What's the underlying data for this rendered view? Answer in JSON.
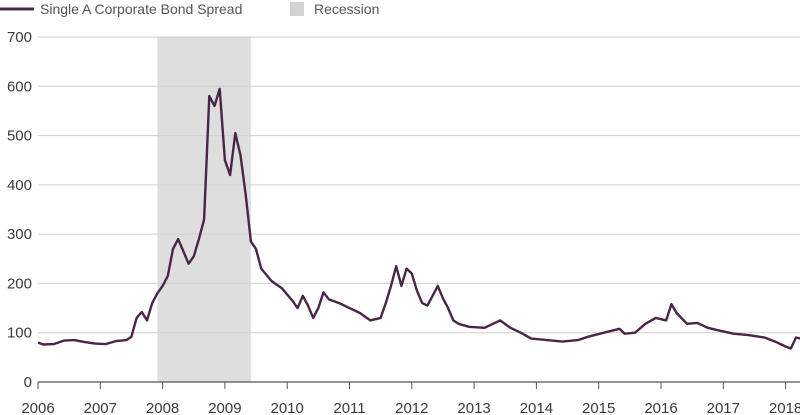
{
  "chart_data": {
    "type": "line",
    "title": "",
    "xlabel": "",
    "ylabel": "",
    "ylim": [
      0,
      700
    ],
    "xlim": [
      "2006-01",
      "2018-04"
    ],
    "y_ticks": [
      0,
      100,
      200,
      300,
      400,
      500,
      600,
      700
    ],
    "x_ticks": [
      "2006",
      "2007",
      "2008",
      "2009",
      "2010",
      "2011",
      "2012",
      "2013",
      "2014",
      "2015",
      "2016",
      "2017",
      "2018"
    ],
    "grid": "horizontal",
    "legend_position": "top-left",
    "colors": {
      "series": "#4a2548",
      "recession": "#dedede",
      "grid": "#cfcfcf",
      "axis": "#555555"
    },
    "series": [
      {
        "name": "Single A Corporate Bond Spread",
        "points": [
          [
            "2006-01",
            80
          ],
          [
            "2006-02",
            76
          ],
          [
            "2006-04",
            77
          ],
          [
            "2006-06",
            84
          ],
          [
            "2006-08",
            85
          ],
          [
            "2006-10",
            81
          ],
          [
            "2006-12",
            78
          ],
          [
            "2007-02",
            77
          ],
          [
            "2007-04",
            83
          ],
          [
            "2007-06",
            85
          ],
          [
            "2007-07",
            92
          ],
          [
            "2007-08",
            130
          ],
          [
            "2007-09",
            142
          ],
          [
            "2007-10",
            125
          ],
          [
            "2007-11",
            160
          ],
          [
            "2007-12",
            180
          ],
          [
            "2008-01",
            195
          ],
          [
            "2008-02",
            215
          ],
          [
            "2008-03",
            270
          ],
          [
            "2008-04",
            290
          ],
          [
            "2008-05",
            265
          ],
          [
            "2008-06",
            240
          ],
          [
            "2008-07",
            255
          ],
          [
            "2008-08",
            290
          ],
          [
            "2008-09",
            330
          ],
          [
            "2008-10",
            580
          ],
          [
            "2008-11",
            560
          ],
          [
            "2008-12",
            595
          ],
          [
            "2009-01",
            450
          ],
          [
            "2009-02",
            420
          ],
          [
            "2009-03",
            505
          ],
          [
            "2009-04",
            460
          ],
          [
            "2009-05",
            380
          ],
          [
            "2009-06",
            285
          ],
          [
            "2009-07",
            270
          ],
          [
            "2009-08",
            230
          ],
          [
            "2009-10",
            205
          ],
          [
            "2009-12",
            190
          ],
          [
            "2010-02",
            165
          ],
          [
            "2010-03",
            150
          ],
          [
            "2010-04",
            175
          ],
          [
            "2010-05",
            155
          ],
          [
            "2010-06",
            130
          ],
          [
            "2010-07",
            150
          ],
          [
            "2010-08",
            182
          ],
          [
            "2010-09",
            168
          ],
          [
            "2010-11",
            160
          ],
          [
            "2011-01",
            150
          ],
          [
            "2011-03",
            140
          ],
          [
            "2011-05",
            125
          ],
          [
            "2011-07",
            130
          ],
          [
            "2011-08",
            160
          ],
          [
            "2011-09",
            195
          ],
          [
            "2011-10",
            235
          ],
          [
            "2011-11",
            195
          ],
          [
            "2011-12",
            230
          ],
          [
            "2012-01",
            220
          ],
          [
            "2012-02",
            185
          ],
          [
            "2012-03",
            160
          ],
          [
            "2012-04",
            155
          ],
          [
            "2012-05",
            175
          ],
          [
            "2012-06",
            195
          ],
          [
            "2012-07",
            170
          ],
          [
            "2012-08",
            150
          ],
          [
            "2012-09",
            125
          ],
          [
            "2012-10",
            118
          ],
          [
            "2012-12",
            112
          ],
          [
            "2013-03",
            110
          ],
          [
            "2013-06",
            125
          ],
          [
            "2013-08",
            110
          ],
          [
            "2013-10",
            100
          ],
          [
            "2013-12",
            88
          ],
          [
            "2014-03",
            85
          ],
          [
            "2014-06",
            82
          ],
          [
            "2014-09",
            85
          ],
          [
            "2014-11",
            92
          ],
          [
            "2015-02",
            100
          ],
          [
            "2015-05",
            108
          ],
          [
            "2015-06",
            98
          ],
          [
            "2015-08",
            100
          ],
          [
            "2015-10",
            118
          ],
          [
            "2015-12",
            130
          ],
          [
            "2016-02",
            125
          ],
          [
            "2016-03",
            158
          ],
          [
            "2016-04",
            140
          ],
          [
            "2016-06",
            118
          ],
          [
            "2016-08",
            120
          ],
          [
            "2016-10",
            110
          ],
          [
            "2016-12",
            105
          ],
          [
            "2017-03",
            98
          ],
          [
            "2017-06",
            95
          ],
          [
            "2017-09",
            90
          ],
          [
            "2017-11",
            82
          ],
          [
            "2018-01",
            72
          ],
          [
            "2018-02",
            68
          ],
          [
            "2018-03",
            90
          ],
          [
            "2018-04",
            88
          ]
        ]
      }
    ],
    "recession": {
      "name": "Recession",
      "start": "2007-12",
      "end": "2009-06"
    }
  }
}
